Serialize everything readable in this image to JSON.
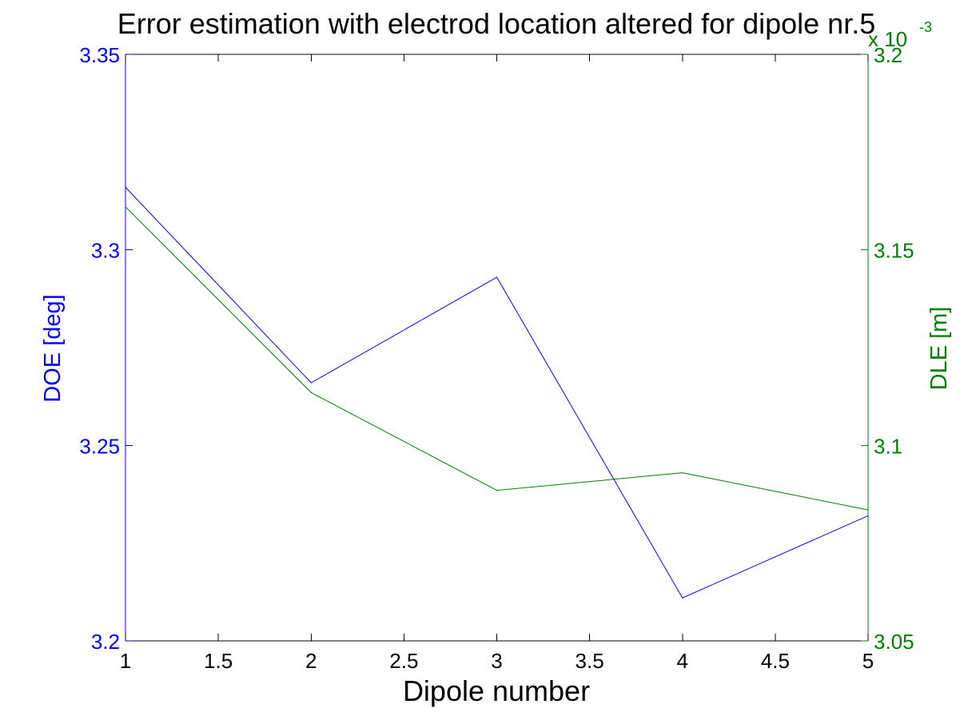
{
  "colors": {
    "left_axis": "#0000ff",
    "right_axis": "#008000",
    "x_axis": "#000000",
    "background": "#ffffff"
  },
  "chart_data": {
    "type": "line",
    "title": "Error estimation with electrod location altered for dipole nr.5",
    "xlabel": "Dipole number",
    "ylabel_left": "DOE [deg]",
    "ylabel_right": "DLE [m]",
    "right_axis_multiplier": "x 10",
    "right_axis_exponent": "-3",
    "xlim": [
      1,
      5
    ],
    "ylim_left": [
      3.2,
      3.35
    ],
    "ylim_right": [
      3.05,
      3.2
    ],
    "xticks": [
      "1",
      "1.5",
      "2",
      "2.5",
      "3",
      "3.5",
      "4",
      "4.5",
      "5"
    ],
    "yticks_left": [
      "3.2",
      "3.25",
      "3.3",
      "3.35"
    ],
    "yticks_right": [
      "3.05",
      "3.1",
      "3.15",
      "3.2"
    ],
    "grid": false,
    "series": [
      {
        "axis": "left",
        "color": "#0000ff",
        "x": [
          1,
          2,
          3,
          4,
          5
        ],
        "y": [
          3.316,
          3.266,
          3.293,
          3.211,
          3.232
        ]
      },
      {
        "axis": "right",
        "color": "#008000",
        "x": [
          1,
          2,
          3,
          4,
          5
        ],
        "y": [
          3.161,
          3.1135,
          3.0885,
          3.093,
          3.0835
        ]
      }
    ]
  }
}
